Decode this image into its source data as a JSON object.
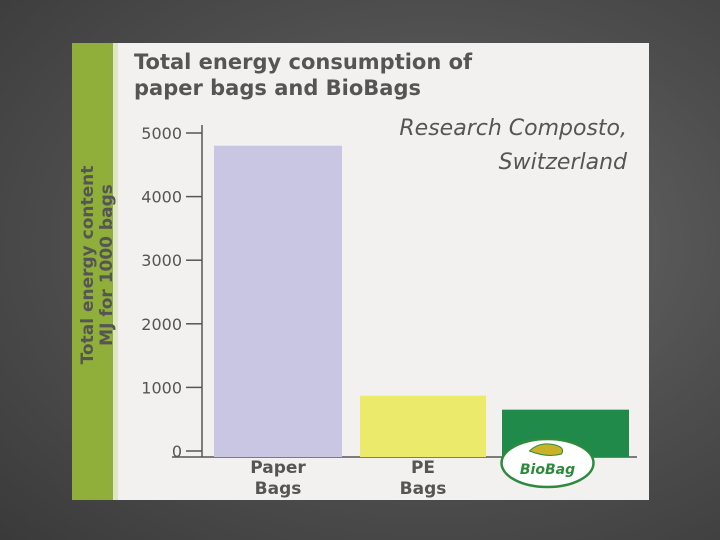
{
  "slide": {
    "background": "#5a5a5a",
    "panel_color": "#f2f1ef",
    "stripe_color": "#8fae3a"
  },
  "chart_data": {
    "type": "bar",
    "title_line1": "Total energy consumption of",
    "title_line2": "paper bags  and BioBags",
    "credit_line1": "Research Composto,",
    "credit_line2": "Switzerland",
    "ylabel_line1": "Total energy content",
    "ylabel_line2": "MJ for 1000 bags",
    "yticks": [
      0,
      1000,
      2000,
      3000,
      4000,
      5000
    ],
    "ylim": [
      0,
      5000
    ],
    "categories": [
      {
        "line1": "Paper",
        "line2": "Bags"
      },
      {
        "line1": "PE",
        "line2": "Bags"
      },
      {
        "line1": "",
        "line2": ""
      }
    ],
    "values": [
      4800,
      870,
      650
    ],
    "colors": [
      "#c9c6e3",
      "#ecea6a",
      "#1f8a4a"
    ],
    "logo_label": "BioBag",
    "logo_icon": "biobag-logo-icon"
  }
}
